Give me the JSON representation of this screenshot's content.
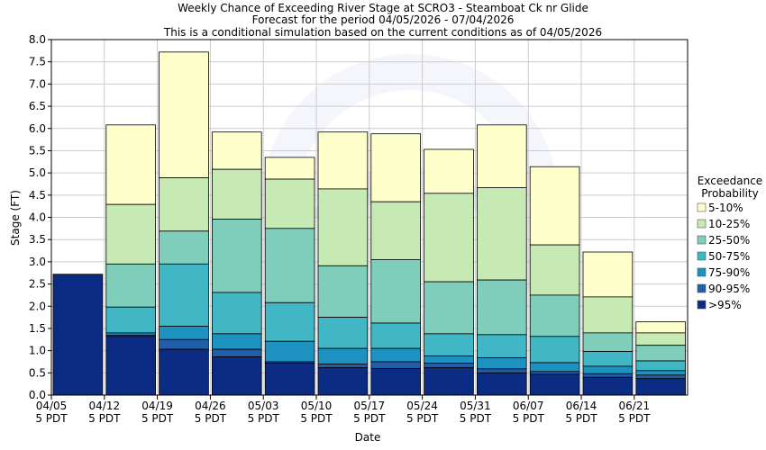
{
  "chart_data": {
    "type": "bar",
    "stacked": true,
    "title": "Weekly Chance of Exceeding River Stage at SCRO3 - Steamboat Ck nr Glide",
    "subtitle1": "Forecast for the period 04/05/2026 - 07/04/2026",
    "subtitle2": "This is a conditional simulation based on the current conditions as of 04/05/2026",
    "xlabel": "Date",
    "ylabel": "Stage (FT)",
    "ylim": [
      0,
      8.0
    ],
    "yticks": [
      "0.0",
      "0.5",
      "1.0",
      "1.5",
      "2.0",
      "2.5",
      "3.0",
      "3.5",
      "4.0",
      "4.5",
      "5.0",
      "5.5",
      "6.0",
      "6.5",
      "7.0",
      "7.5",
      "8.0"
    ],
    "grid": true,
    "xticks": [
      {
        "date": "04/05",
        "tz": "5 PDT"
      },
      {
        "date": "04/12",
        "tz": "5 PDT"
      },
      {
        "date": "04/19",
        "tz": "5 PDT"
      },
      {
        "date": "04/26",
        "tz": "5 PDT"
      },
      {
        "date": "05/03",
        "tz": "5 PDT"
      },
      {
        "date": "05/10",
        "tz": "5 PDT"
      },
      {
        "date": "05/17",
        "tz": "5 PDT"
      },
      {
        "date": "05/24",
        "tz": "5 PDT"
      },
      {
        "date": "05/31",
        "tz": "5 PDT"
      },
      {
        "date": "06/07",
        "tz": "5 PDT"
      },
      {
        "date": "06/14",
        "tz": "5 PDT"
      },
      {
        "date": "06/21",
        "tz": "5 PDT"
      }
    ],
    "legend": {
      "title_line1": "Exceedance",
      "title_line2": "Probability",
      "placement": "right",
      "entries": [
        "5-10%",
        "10-25%",
        "25-50%",
        "50-75%",
        "75-90%",
        "90-95%",
        ">95%"
      ]
    },
    "series_colors": [
      "#ffffcc",
      "#c7e9b4",
      "#7fcdbb",
      "#41b6c4",
      "#1d91c0",
      "#225ea8",
      "#0c2c84"
    ],
    "weeks": [
      {
        "levels": [
          2.72,
          2.72,
          2.72,
          2.72,
          2.72,
          2.72,
          2.72
        ]
      },
      {
        "levels": [
          6.08,
          4.29,
          2.95,
          1.98,
          1.4,
          1.35,
          1.32
        ]
      },
      {
        "levels": [
          7.72,
          4.89,
          3.69,
          2.95,
          1.55,
          1.25,
          1.03
        ]
      },
      {
        "levels": [
          5.92,
          5.08,
          3.96,
          2.31,
          1.38,
          1.03,
          0.86
        ]
      },
      {
        "levels": [
          5.35,
          4.86,
          3.75,
          2.08,
          1.21,
          0.75,
          0.72
        ]
      },
      {
        "levels": [
          5.92,
          4.64,
          2.91,
          1.75,
          1.05,
          0.7,
          0.62
        ]
      },
      {
        "levels": [
          5.88,
          4.35,
          3.05,
          1.62,
          1.05,
          0.75,
          0.6
        ]
      },
      {
        "levels": [
          5.53,
          4.54,
          2.55,
          1.38,
          0.88,
          0.72,
          0.62
        ]
      },
      {
        "levels": [
          6.08,
          4.67,
          2.59,
          1.36,
          0.84,
          0.59,
          0.5
        ]
      },
      {
        "levels": [
          5.14,
          3.38,
          2.25,
          1.32,
          0.73,
          0.53,
          0.47
        ]
      },
      {
        "levels": [
          3.22,
          2.21,
          1.4,
          0.98,
          0.65,
          0.48,
          0.4
        ]
      },
      {
        "levels": [
          1.65,
          1.4,
          1.12,
          0.77,
          0.55,
          0.45,
          0.37
        ]
      }
    ]
  }
}
